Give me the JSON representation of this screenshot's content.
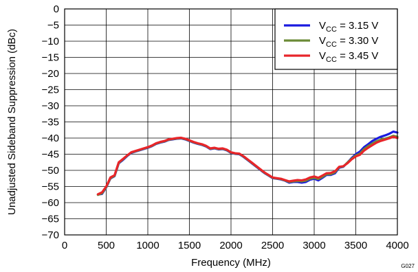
{
  "chart_data": {
    "type": "line",
    "xlabel": "Frequency (MHz)",
    "ylabel": "Unadjusted Sideband Suppression (dBc)",
    "xlim": [
      0,
      4000
    ],
    "ylim": [
      -70,
      0
    ],
    "x_ticks": [
      0,
      500,
      1000,
      1500,
      2000,
      2500,
      3000,
      3500,
      4000
    ],
    "y_ticks": [
      0,
      -5,
      -10,
      -15,
      -20,
      -25,
      -30,
      -35,
      -40,
      -45,
      -50,
      -55,
      -60,
      -65,
      -70
    ],
    "x_tick_labels": [
      "0",
      "500",
      "1000",
      "1500",
      "2000",
      "2500",
      "3000",
      "3500",
      "4000"
    ],
    "y_tick_labels": [
      "0",
      "−5",
      "−10",
      "−15",
      "−20",
      "−25",
      "−30",
      "−35",
      "−40",
      "−45",
      "−50",
      "−55",
      "−60",
      "−65",
      "−70"
    ],
    "grid": true,
    "legend_position": "top-right",
    "figure_id": "G027",
    "series": [
      {
        "name_main": "V",
        "name_sub": "CC",
        "name_rest": " = 3.15 V",
        "color": "#1a1adf",
        "x": [
          400,
          450,
          500,
          550,
          600,
          650,
          700,
          750,
          800,
          850,
          900,
          950,
          1000,
          1050,
          1100,
          1150,
          1200,
          1250,
          1300,
          1350,
          1400,
          1450,
          1500,
          1550,
          1600,
          1650,
          1700,
          1750,
          1800,
          1850,
          1900,
          1950,
          2000,
          2050,
          2100,
          2150,
          2200,
          2250,
          2300,
          2350,
          2400,
          2450,
          2500,
          2550,
          2600,
          2650,
          2700,
          2750,
          2800,
          2850,
          2900,
          2950,
          3000,
          3050,
          3100,
          3150,
          3200,
          3250,
          3300,
          3350,
          3400,
          3450,
          3500,
          3550,
          3600,
          3650,
          3700,
          3750,
          3800,
          3850,
          3900,
          3950,
          4000
        ],
        "y": [
          -57.5,
          -57.3,
          -55.3,
          -52.5,
          -51.8,
          -47.8,
          -46.8,
          -45.6,
          -44.6,
          -44.2,
          -43.8,
          -43.4,
          -43.0,
          -42.5,
          -41.8,
          -41.4,
          -41.1,
          -40.6,
          -40.4,
          -40.2,
          -40.1,
          -40.4,
          -40.9,
          -41.4,
          -41.8,
          -42.1,
          -42.6,
          -43.4,
          -43.2,
          -43.5,
          -43.4,
          -43.8,
          -44.6,
          -44.9,
          -45.0,
          -45.8,
          -46.8,
          -47.8,
          -48.8,
          -49.8,
          -50.8,
          -51.6,
          -52.4,
          -52.6,
          -52.8,
          -53.2,
          -53.8,
          -53.6,
          -53.6,
          -53.8,
          -53.6,
          -52.9,
          -52.6,
          -53.1,
          -52.3,
          -51.4,
          -51.4,
          -50.9,
          -49.2,
          -48.9,
          -47.6,
          -46.2,
          -45.0,
          -44.2,
          -42.8,
          -41.9,
          -40.9,
          -40.2,
          -39.6,
          -39.2,
          -38.7,
          -38.0,
          -38.3
        ]
      },
      {
        "name_main": "V",
        "name_sub": "CC",
        "name_rest": " = 3.30 V",
        "color": "#6b8a36",
        "x": [
          400,
          450,
          500,
          550,
          600,
          650,
          700,
          750,
          800,
          850,
          900,
          950,
          1000,
          1050,
          1100,
          1150,
          1200,
          1250,
          1300,
          1350,
          1400,
          1450,
          1500,
          1550,
          1600,
          1650,
          1700,
          1750,
          1800,
          1850,
          1900,
          1950,
          2000,
          2050,
          2100,
          2150,
          2200,
          2250,
          2300,
          2350,
          2400,
          2450,
          2500,
          2550,
          2600,
          2650,
          2700,
          2750,
          2800,
          2850,
          2900,
          2950,
          3000,
          3050,
          3100,
          3150,
          3200,
          3250,
          3300,
          3350,
          3400,
          3450,
          3500,
          3550,
          3600,
          3650,
          3700,
          3750,
          3800,
          3850,
          3900,
          3950,
          4000
        ],
        "y": [
          -57.6,
          -57.1,
          -55.2,
          -52.4,
          -51.7,
          -47.7,
          -46.6,
          -45.5,
          -44.5,
          -44.1,
          -43.7,
          -43.3,
          -42.9,
          -42.4,
          -41.7,
          -41.3,
          -41.0,
          -40.5,
          -40.3,
          -40.1,
          -40.0,
          -40.3,
          -40.8,
          -41.3,
          -41.7,
          -42.0,
          -42.5,
          -43.3,
          -43.1,
          -43.4,
          -43.3,
          -43.7,
          -44.5,
          -44.8,
          -44.9,
          -45.7,
          -46.7,
          -47.7,
          -48.7,
          -49.7,
          -50.7,
          -51.5,
          -52.3,
          -52.5,
          -52.7,
          -53.1,
          -53.6,
          -53.4,
          -53.3,
          -53.4,
          -53.2,
          -52.6,
          -52.3,
          -52.7,
          -52.0,
          -51.2,
          -51.2,
          -50.6,
          -49.0,
          -48.8,
          -47.6,
          -46.4,
          -45.4,
          -44.8,
          -43.4,
          -42.5,
          -41.7,
          -41.0,
          -40.5,
          -40.2,
          -39.8,
          -39.3,
          -39.6
        ]
      },
      {
        "name_main": "V",
        "name_sub": "CC",
        "name_rest": " = 3.45 V",
        "color": "#e8252a",
        "x": [
          400,
          450,
          500,
          550,
          600,
          650,
          700,
          750,
          800,
          850,
          900,
          950,
          1000,
          1050,
          1100,
          1150,
          1200,
          1250,
          1300,
          1350,
          1400,
          1450,
          1500,
          1550,
          1600,
          1650,
          1700,
          1750,
          1800,
          1850,
          1900,
          1950,
          2000,
          2050,
          2100,
          2150,
          2200,
          2250,
          2300,
          2350,
          2400,
          2450,
          2500,
          2550,
          2600,
          2650,
          2700,
          2750,
          2800,
          2850,
          2900,
          2950,
          3000,
          3050,
          3100,
          3150,
          3200,
          3250,
          3300,
          3350,
          3400,
          3450,
          3500,
          3550,
          3600,
          3650,
          3700,
          3750,
          3800,
          3850,
          3900,
          3950,
          4000
        ],
        "y": [
          -57.4,
          -56.8,
          -55.0,
          -52.2,
          -51.5,
          -47.5,
          -46.5,
          -45.4,
          -44.4,
          -44.0,
          -43.6,
          -43.2,
          -42.8,
          -42.3,
          -41.6,
          -41.2,
          -40.9,
          -40.4,
          -40.2,
          -40.0,
          -39.9,
          -40.2,
          -40.7,
          -41.2,
          -41.6,
          -41.9,
          -42.4,
          -43.2,
          -43.0,
          -43.3,
          -43.2,
          -43.6,
          -44.4,
          -44.7,
          -44.8,
          -45.6,
          -46.6,
          -47.6,
          -48.6,
          -49.6,
          -50.6,
          -51.4,
          -52.2,
          -52.4,
          -52.6,
          -53.0,
          -53.4,
          -53.2,
          -53.0,
          -53.1,
          -52.8,
          -52.2,
          -51.9,
          -52.3,
          -51.6,
          -50.9,
          -50.8,
          -50.3,
          -48.9,
          -48.7,
          -47.8,
          -46.6,
          -45.7,
          -45.2,
          -43.9,
          -43.0,
          -42.2,
          -41.4,
          -40.9,
          -40.5,
          -40.1,
          -39.6,
          -40.0
        ]
      }
    ]
  }
}
